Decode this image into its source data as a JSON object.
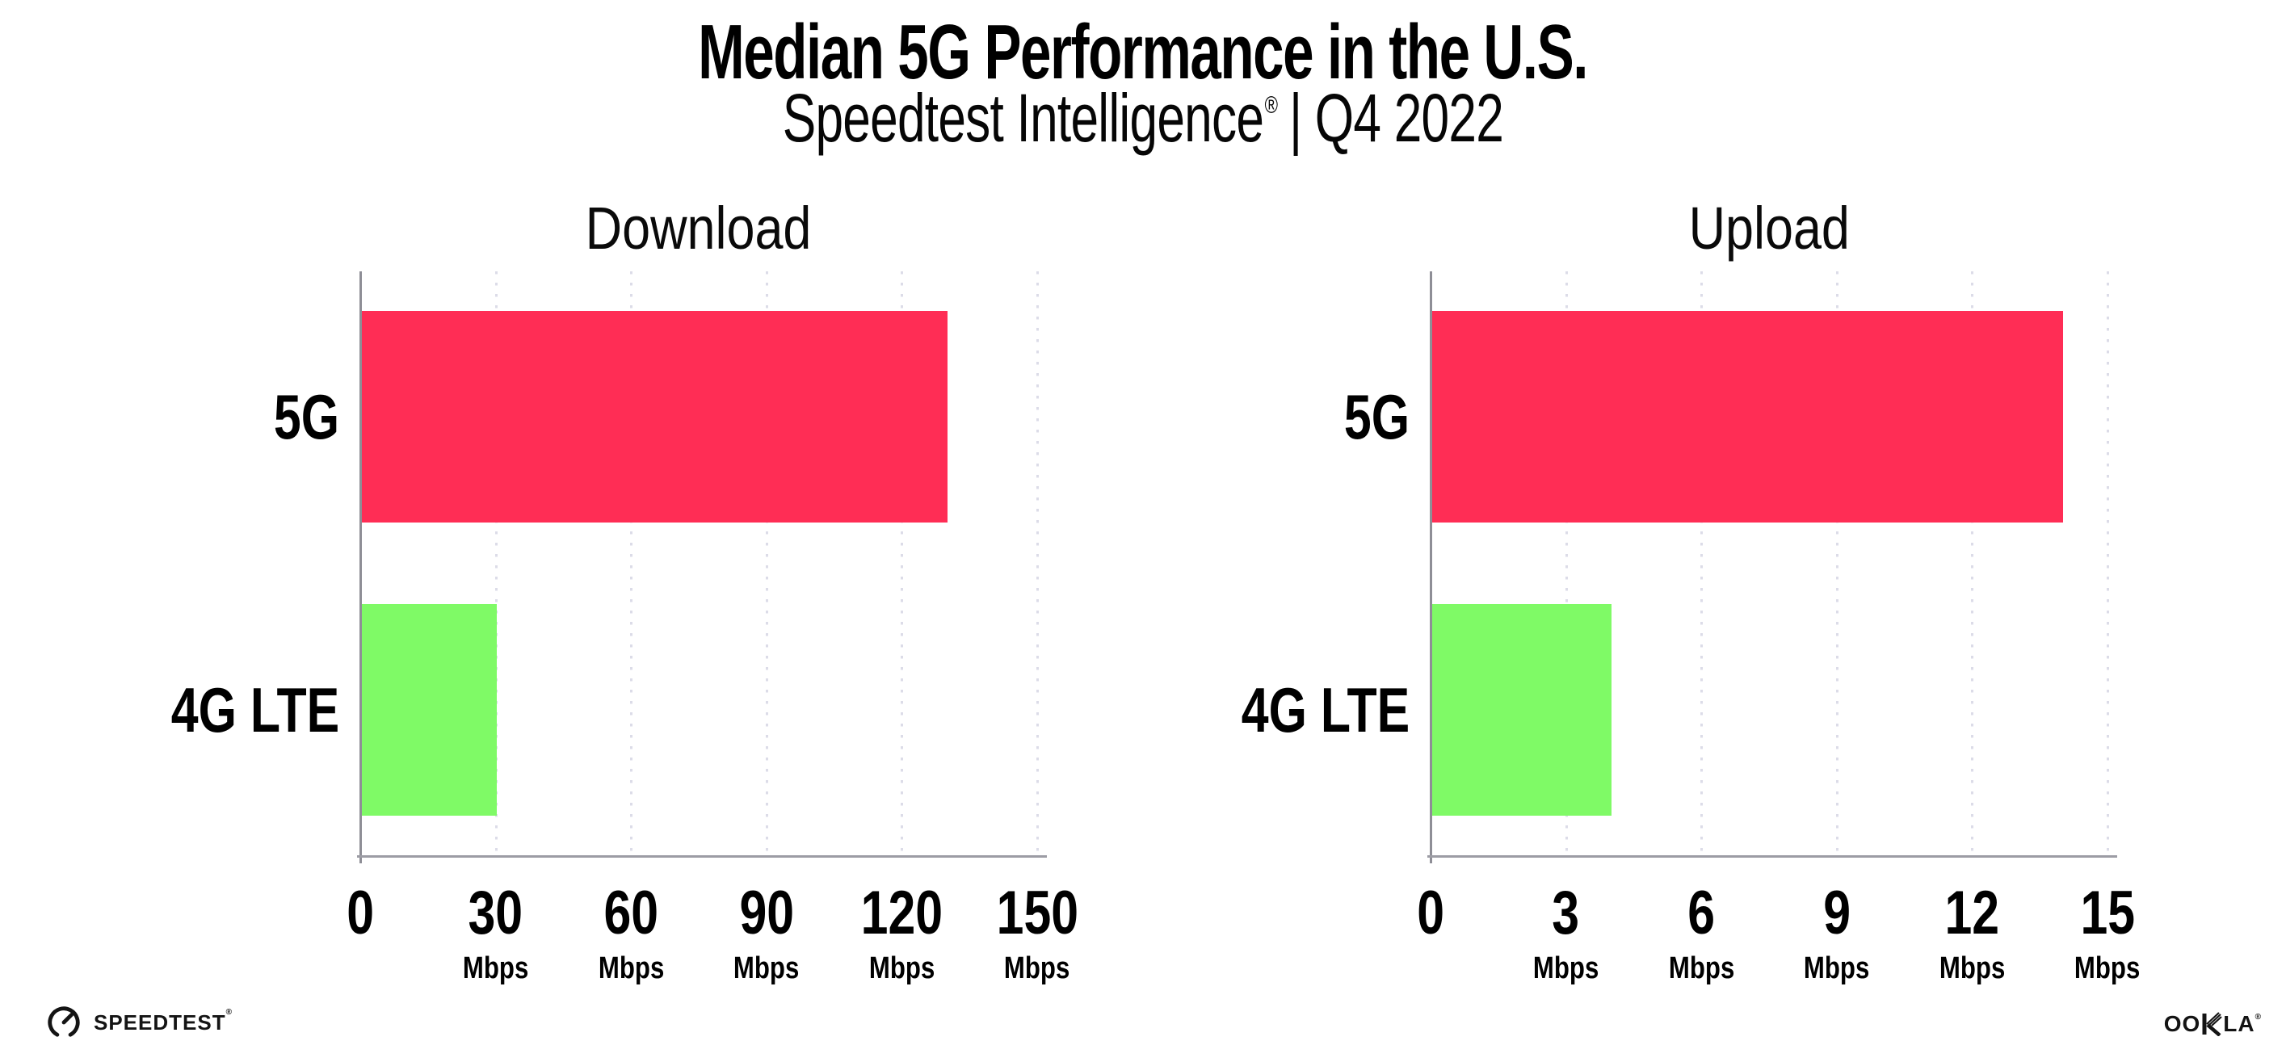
{
  "header": {
    "title": "Median 5G Performance in the U.S.",
    "subtitle": {
      "brand": "Speedtest Intelligence",
      "reg": "®",
      "divider": "|",
      "period": "Q4 2022"
    }
  },
  "chart_data": [
    {
      "type": "bar",
      "orientation": "horizontal",
      "title": "Download",
      "categories": [
        "5G",
        "4G LTE"
      ],
      "values": [
        130,
        30
      ],
      "unit": "Mbps",
      "xlim": [
        0,
        150
      ],
      "xticks": [
        0,
        30,
        60,
        90,
        120,
        150
      ],
      "grid": "dotted-vertical",
      "legend": "none",
      "bar_colors": [
        "#FF2D55",
        "#7FFA66"
      ]
    },
    {
      "type": "bar",
      "orientation": "horizontal",
      "title": "Upload",
      "categories": [
        "5G",
        "4G LTE"
      ],
      "values": [
        14,
        4
      ],
      "unit": "Mbps",
      "xlim": [
        0,
        15
      ],
      "xticks": [
        0,
        3,
        6,
        9,
        12,
        15
      ],
      "grid": "dotted-vertical",
      "legend": "none",
      "bar_colors": [
        "#FF2D55",
        "#7FFA66"
      ]
    }
  ],
  "colors": {
    "bar_5g": "#FF2D55",
    "bar_4g_lte": "#7FFA66",
    "gridline": "#dcdce8",
    "axis": "#9c9ca4",
    "text": "#000000"
  },
  "footer": {
    "speedtest_label": "SPEEDTEST",
    "speedtest_reg": "®",
    "ookla_label_left": "OO",
    "ookla_label_right": "LA",
    "ookla_reg": "®"
  }
}
